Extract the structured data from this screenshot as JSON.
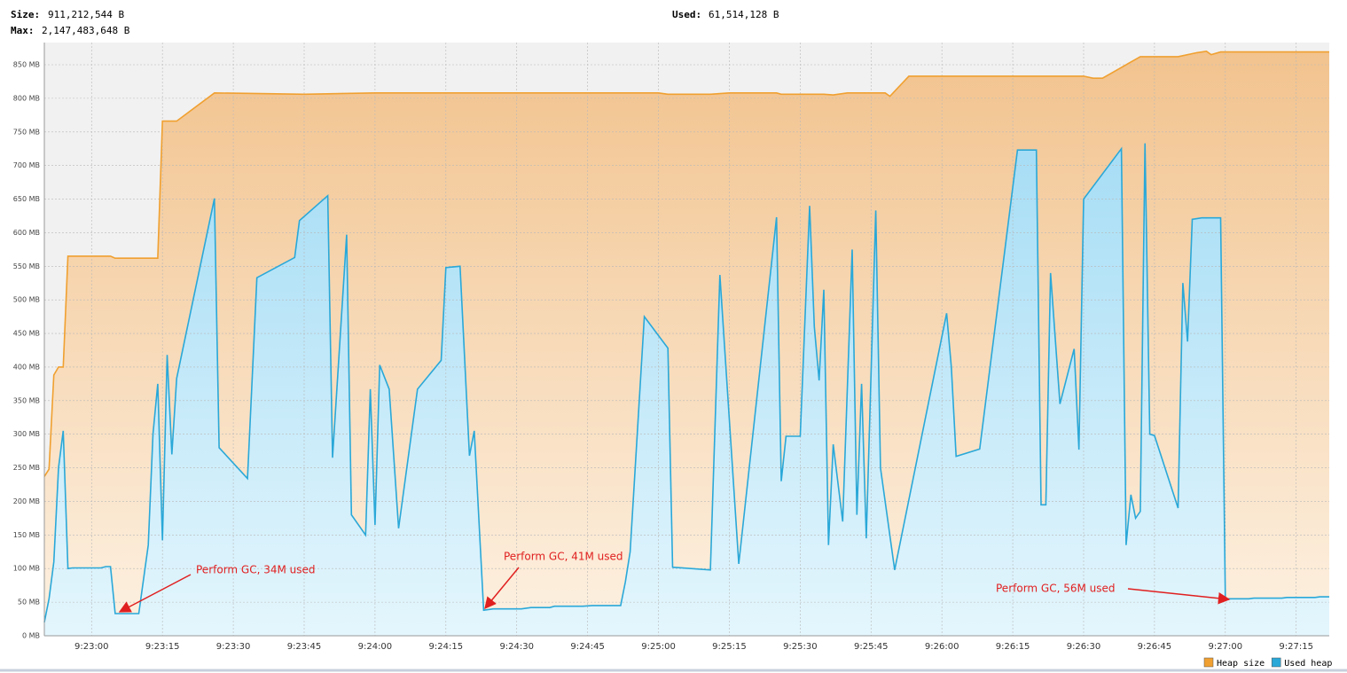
{
  "header": {
    "size_label": "Size:",
    "size": "911,212,544 B",
    "max_label": "Max:",
    "max": "2,147,483,648 B",
    "used_label": "Used:",
    "used": "61,514,128 B"
  },
  "chart_data": {
    "type": "area",
    "xlim": [
      "9:22:50",
      "9:27:22"
    ],
    "xticks": [
      "9:23:00",
      "9:23:15",
      "9:23:30",
      "9:23:45",
      "9:24:00",
      "9:24:15",
      "9:24:30",
      "9:24:45",
      "9:25:00",
      "9:25:15",
      "9:25:30",
      "9:25:45",
      "9:26:00",
      "9:26:15",
      "9:26:30",
      "9:26:45",
      "9:27:00",
      "9:27:15"
    ],
    "ylim": [
      0,
      883
    ],
    "yticks": [
      {
        "value": 0,
        "label": "0 MB"
      },
      {
        "value": 50,
        "label": "50 MB"
      },
      {
        "value": 100,
        "label": "100 MB"
      },
      {
        "value": 150,
        "label": "150 MB"
      },
      {
        "value": 200,
        "label": "200 MB"
      },
      {
        "value": 250,
        "label": "250 MB"
      },
      {
        "value": 300,
        "label": "300 MB"
      },
      {
        "value": 350,
        "label": "350 MB"
      },
      {
        "value": 400,
        "label": "400 MB"
      },
      {
        "value": 450,
        "label": "450 MB"
      },
      {
        "value": 500,
        "label": "500 MB"
      },
      {
        "value": 550,
        "label": "550 MB"
      },
      {
        "value": 600,
        "label": "600 MB"
      },
      {
        "value": 650,
        "label": "650 MB"
      },
      {
        "value": 700,
        "label": "700 MB"
      },
      {
        "value": 750,
        "label": "750 MB"
      },
      {
        "value": 800,
        "label": "800 MB"
      },
      {
        "value": 850,
        "label": "850 MB"
      }
    ],
    "grid": true,
    "legend": "bottom-right",
    "series": [
      {
        "name": "Heap size",
        "color": "#f0a030",
        "x": [
          "9:22:50",
          "9:22:51",
          "9:22:52",
          "9:22:53",
          "9:22:54",
          "9:22:55",
          "9:23:04",
          "9:23:05",
          "9:23:14",
          "9:23:15",
          "9:23:18",
          "9:23:26",
          "9:23:45",
          "9:24:00",
          "9:25:00",
          "9:25:02",
          "9:25:11",
          "9:25:15",
          "9:25:25",
          "9:25:26",
          "9:25:35",
          "9:25:37",
          "9:25:40",
          "9:25:48",
          "9:25:49",
          "9:25:53",
          "9:26:30",
          "9:26:32",
          "9:26:34",
          "9:26:42",
          "9:26:50",
          "9:26:54",
          "9:26:56",
          "9:26:57",
          "9:26:59",
          "9:27:22"
        ],
        "values": [
          237,
          248,
          388,
          400,
          400,
          565,
          565,
          562,
          562,
          766,
          766,
          808,
          806,
          808,
          808,
          806,
          806,
          808,
          808,
          806,
          806,
          805,
          808,
          808,
          803,
          833,
          833,
          830,
          830,
          862,
          862,
          868,
          870,
          865,
          869,
          869
        ]
      },
      {
        "name": "Used heap",
        "color": "#2aa8d8",
        "x": [
          "9:22:50",
          "9:22:51",
          "9:22:52",
          "9:22:53",
          "9:22:54",
          "9:22:55",
          "9:22:56",
          "9:23:02",
          "9:23:03",
          "9:23:04",
          "9:23:05",
          "9:23:08",
          "9:23:10",
          "9:23:12",
          "9:23:13",
          "9:23:14",
          "9:23:15",
          "9:23:16",
          "9:23:17",
          "9:23:18",
          "9:23:26",
          "9:23:27",
          "9:23:33",
          "9:23:35",
          "9:23:43",
          "9:23:44",
          "9:23:50",
          "9:23:51",
          "9:23:54",
          "9:23:55",
          "9:23:58",
          "9:23:59",
          "9:24:00",
          "9:24:01",
          "9:24:03",
          "9:24:05",
          "9:24:09",
          "9:24:14",
          "9:24:15",
          "9:24:18",
          "9:24:20",
          "9:24:21",
          "9:24:23",
          "9:24:25",
          "9:24:31",
          "9:24:33",
          "9:24:37",
          "9:24:38",
          "9:24:44",
          "9:24:46",
          "9:24:52",
          "9:24:53",
          "9:24:54",
          "9:24:57",
          "9:25:02",
          "9:25:03",
          "9:25:11",
          "9:25:13",
          "9:25:17",
          "9:25:25",
          "9:25:26",
          "9:25:27",
          "9:25:30",
          "9:25:32",
          "9:25:33",
          "9:25:34",
          "9:25:35",
          "9:25:36",
          "9:25:37",
          "9:25:39",
          "9:25:41",
          "9:25:42",
          "9:25:43",
          "9:25:44",
          "9:25:46",
          "9:25:47",
          "9:25:50",
          "9:26:01",
          "9:26:02",
          "9:26:03",
          "9:26:08",
          "9:26:16",
          "9:26:20",
          "9:26:21",
          "9:26:22",
          "9:26:23",
          "9:26:25",
          "9:26:28",
          "9:26:29",
          "9:26:30",
          "9:26:38",
          "9:26:39",
          "9:26:40",
          "9:26:41",
          "9:26:42",
          "9:26:43",
          "9:26:44",
          "9:26:45",
          "9:26:50",
          "9:26:51",
          "9:26:52",
          "9:26:53",
          "9:26:55",
          "9:26:59",
          "9:27:00",
          "9:27:05",
          "9:27:06",
          "9:27:12",
          "9:27:13",
          "9:27:19",
          "9:27:20",
          "9:27:22"
        ],
        "values": [
          20,
          55,
          110,
          250,
          305,
          100,
          101,
          101,
          103,
          103,
          33,
          33,
          33,
          135,
          300,
          375,
          142,
          418,
          270,
          383,
          651,
          280,
          234,
          533,
          563,
          618,
          655,
          265,
          597,
          180,
          150,
          367,
          165,
          403,
          367,
          160,
          367,
          410,
          548,
          550,
          268,
          305,
          38,
          40,
          40,
          42,
          42,
          44,
          44,
          45,
          45,
          80,
          125,
          475,
          428,
          102,
          98,
          537,
          107,
          623,
          230,
          297,
          297,
          640,
          460,
          380,
          515,
          135,
          285,
          170,
          575,
          180,
          375,
          145,
          633,
          250,
          98,
          480,
          400,
          267,
          278,
          723,
          723,
          195,
          195,
          540,
          345,
          427,
          277,
          650,
          725,
          135,
          210,
          175,
          185,
          733,
          300,
          298,
          190,
          525,
          438,
          620,
          622,
          622,
          55,
          55,
          56,
          56,
          57,
          57,
          58,
          58
        ]
      }
    ],
    "annotations": [
      "Perform GC, 34M used",
      "Perform GC, 41M used",
      "Perform GC, 56M used"
    ]
  }
}
